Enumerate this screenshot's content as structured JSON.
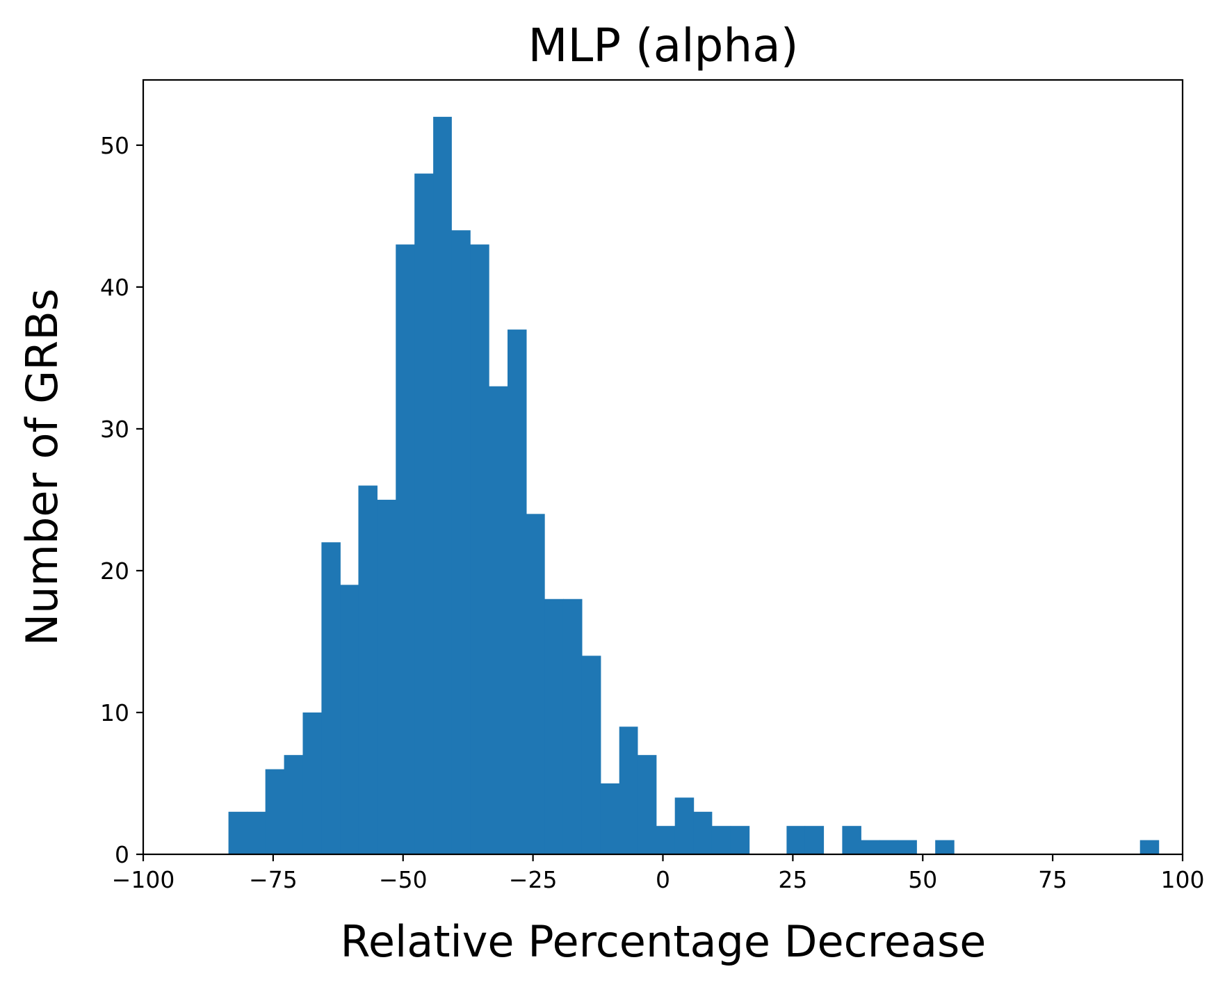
{
  "chart_data": {
    "type": "bar",
    "title": "MLP (alpha)",
    "xlabel": "Relative Percentage Decrease",
    "ylabel": "Number of GRBs",
    "xlim": [
      -100,
      100
    ],
    "ylim": [
      0,
      54.6
    ],
    "xticks": [
      -100,
      -75,
      -50,
      -25,
      0,
      25,
      50,
      75,
      100
    ],
    "xtick_labels": [
      "−100",
      "−75",
      "−50",
      "−25",
      "0",
      "25",
      "50",
      "75",
      "100"
    ],
    "yticks": [
      0,
      10,
      20,
      30,
      40,
      50
    ],
    "ytick_labels": [
      "0",
      "10",
      "20",
      "30",
      "40",
      "50"
    ],
    "grid": false,
    "bar_color": "#1f77b4",
    "bins": [
      {
        "x0": -83.6,
        "x1": -80.0,
        "value": 3
      },
      {
        "x0": -80.0,
        "x1": -76.5,
        "value": 3
      },
      {
        "x0": -76.5,
        "x1": -72.9,
        "value": 6
      },
      {
        "x0": -72.9,
        "x1": -69.3,
        "value": 7
      },
      {
        "x0": -69.3,
        "x1": -65.7,
        "value": 10
      },
      {
        "x0": -65.7,
        "x1": -62.1,
        "value": 22
      },
      {
        "x0": -62.1,
        "x1": -58.6,
        "value": 19
      },
      {
        "x0": -58.6,
        "x1": -55.0,
        "value": 26
      },
      {
        "x0": -55.0,
        "x1": -51.4,
        "value": 25
      },
      {
        "x0": -51.4,
        "x1": -47.8,
        "value": 43
      },
      {
        "x0": -47.8,
        "x1": -44.2,
        "value": 48
      },
      {
        "x0": -44.2,
        "x1": -40.7,
        "value": 52
      },
      {
        "x0": -40.7,
        "x1": -37.1,
        "value": 44
      },
      {
        "x0": -37.1,
        "x1": -33.5,
        "value": 43
      },
      {
        "x0": -33.5,
        "x1": -29.9,
        "value": 33
      },
      {
        "x0": -29.9,
        "x1": -26.3,
        "value": 37
      },
      {
        "x0": -26.3,
        "x1": -22.8,
        "value": 24
      },
      {
        "x0": -22.8,
        "x1": -19.2,
        "value": 18
      },
      {
        "x0": -19.2,
        "x1": -15.6,
        "value": 18
      },
      {
        "x0": -15.6,
        "x1": -12.0,
        "value": 14
      },
      {
        "x0": -12.0,
        "x1": -8.4,
        "value": 5
      },
      {
        "x0": -8.4,
        "x1": -4.9,
        "value": 9
      },
      {
        "x0": -4.9,
        "x1": -1.3,
        "value": 7
      },
      {
        "x0": -1.3,
        "x1": 2.3,
        "value": 2
      },
      {
        "x0": 2.3,
        "x1": 5.9,
        "value": 4
      },
      {
        "x0": 5.9,
        "x1": 9.4,
        "value": 3
      },
      {
        "x0": 9.4,
        "x1": 13.0,
        "value": 2
      },
      {
        "x0": 13.0,
        "x1": 16.6,
        "value": 2
      },
      {
        "x0": 16.6,
        "x1": 20.2,
        "value": 0
      },
      {
        "x0": 20.2,
        "x1": 23.8,
        "value": 0
      },
      {
        "x0": 23.8,
        "x1": 27.3,
        "value": 2
      },
      {
        "x0": 27.3,
        "x1": 30.9,
        "value": 2
      },
      {
        "x0": 30.9,
        "x1": 34.5,
        "value": 0
      },
      {
        "x0": 34.5,
        "x1": 38.1,
        "value": 2
      },
      {
        "x0": 38.1,
        "x1": 41.7,
        "value": 1
      },
      {
        "x0": 41.7,
        "x1": 45.2,
        "value": 1
      },
      {
        "x0": 45.2,
        "x1": 48.8,
        "value": 1
      },
      {
        "x0": 48.8,
        "x1": 52.4,
        "value": 0
      },
      {
        "x0": 52.4,
        "x1": 56.0,
        "value": 1
      },
      {
        "x0": 56.0,
        "x1": 59.6,
        "value": 0
      },
      {
        "x0": 59.6,
        "x1": 63.1,
        "value": 0
      },
      {
        "x0": 63.1,
        "x1": 66.7,
        "value": 0
      },
      {
        "x0": 66.7,
        "x1": 70.3,
        "value": 0
      },
      {
        "x0": 70.3,
        "x1": 73.9,
        "value": 0
      },
      {
        "x0": 73.9,
        "x1": 77.5,
        "value": 0
      },
      {
        "x0": 77.5,
        "x1": 81.0,
        "value": 0
      },
      {
        "x0": 81.0,
        "x1": 84.6,
        "value": 0
      },
      {
        "x0": 84.6,
        "x1": 88.2,
        "value": 0
      },
      {
        "x0": 88.2,
        "x1": 91.8,
        "value": 0
      },
      {
        "x0": 91.8,
        "x1": 95.4,
        "value": 1
      }
    ]
  }
}
